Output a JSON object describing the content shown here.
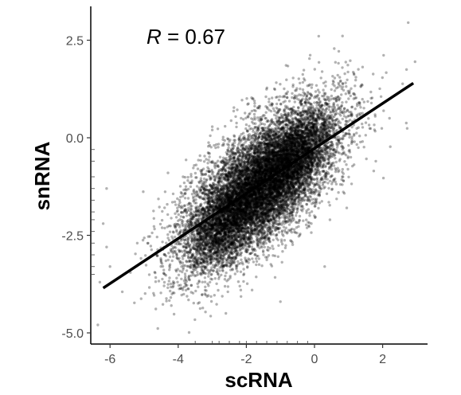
{
  "chart_data": {
    "type": "scatter",
    "xlabel": "scRNA",
    "ylabel": "snRNA",
    "annotation": {
      "symbol": "R",
      "text": " = 0.67"
    },
    "xlim": [
      -6.5,
      3.3
    ],
    "ylim": [
      -5.2,
      3.3
    ],
    "x_ticks": [
      -6,
      -4,
      -2,
      0,
      2
    ],
    "x_tick_labels": [
      "-6",
      "-4",
      "-2",
      "0",
      "2"
    ],
    "y_ticks": [
      2.5,
      0.0,
      -2.5,
      -5.0
    ],
    "y_tick_labels": [
      "2.5",
      "0.0",
      "-2.5",
      "-5.0"
    ],
    "grid": false,
    "point_color": "#000000",
    "point_opacity": 0.3,
    "regression_line": {
      "x": [
        -6.2,
        2.9
      ],
      "y": [
        -3.85,
        1.4
      ],
      "color": "#000000"
    },
    "point_cloud": {
      "n_points": 9000,
      "center": [
        -1.6,
        -1.2
      ],
      "sd": [
        1.15,
        1.05
      ],
      "correlation": 0.67,
      "dense_regions": [
        {
          "x": -0.5,
          "y": -0.4,
          "sd": 0.55
        },
        {
          "x": -2.7,
          "y": -2.2,
          "sd": 0.6
        },
        {
          "x": -1.5,
          "y": -1.3,
          "sd": 0.7
        }
      ]
    },
    "outlier_points": [
      {
        "x": 2.75,
        "y": 2.95
      },
      {
        "x": 2.95,
        "y": 1.95
      },
      {
        "x": 2.7,
        "y": 1.75
      },
      {
        "x": -6.1,
        "y": -1.3
      },
      {
        "x": -6.2,
        "y": -2.2
      },
      {
        "x": -6.0,
        "y": -3.3
      },
      {
        "x": -6.3,
        "y": -3.7
      },
      {
        "x": -6.1,
        "y": -2.8
      },
      {
        "x": 1.0,
        "y": 1.0
      },
      {
        "x": 1.3,
        "y": 0.9
      },
      {
        "x": 2.2,
        "y": 0.5
      },
      {
        "x": 1.8,
        "y": -0.6
      },
      {
        "x": -4.2,
        "y": -4.3
      },
      {
        "x": -2.6,
        "y": -4.5
      },
      {
        "x": -1.0,
        "y": -4.2
      },
      {
        "x": -3.0,
        "y": 0.2
      },
      {
        "x": -4.3,
        "y": -0.9
      },
      {
        "x": -1.8,
        "y": 1.0
      },
      {
        "x": -5.2,
        "y": -2.7
      },
      {
        "x": 0.3,
        "y": -3.3
      }
    ],
    "rug": {
      "left": [
        -0.3,
        -0.6,
        -1.0,
        -1.3,
        -1.6,
        -1.9,
        -2.1,
        -2.4,
        -2.7,
        -3.0,
        -3.3,
        -3.5
      ],
      "bottom": [
        -3.5,
        -3.0,
        -2.8,
        -2.5,
        -2.2,
        -2.0,
        -1.7,
        -1.4,
        -1.1,
        -0.8,
        -0.5,
        -0.2
      ]
    }
  }
}
